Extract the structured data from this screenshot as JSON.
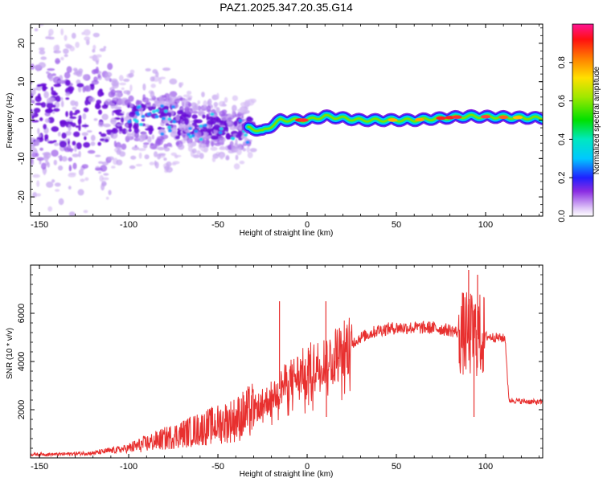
{
  "title": "PAZ1.2025.347.20.35.G14",
  "chart_data": [
    {
      "type": "heatmap",
      "name": "spectrogram",
      "xlabel": "Height of straight line (km)",
      "ylabel": "Frequency (Hz)",
      "xlim": [
        -155,
        132
      ],
      "ylim": [
        -25,
        25
      ],
      "xticks": [
        -150,
        -100,
        -50,
        0,
        50,
        100
      ],
      "yticks": [
        -20,
        -10,
        0,
        10,
        20
      ],
      "colorbar": {
        "label": "Normalized spectral amplitude",
        "range": [
          0,
          1
        ],
        "ticks": [
          0.0,
          0.2,
          0.4,
          0.6,
          0.8
        ]
      },
      "ridge": {
        "x": [
          -155,
          -120,
          -100,
          -80,
          -60,
          -40,
          -32,
          -25,
          -15,
          0,
          10,
          30,
          60,
          90,
          132
        ],
        "frequency": [
          2,
          1,
          0,
          0,
          -1,
          -3,
          -2,
          -3,
          0,
          0,
          1,
          0,
          0,
          1,
          0.5
        ]
      }
    },
    {
      "type": "line",
      "name": "snr",
      "xlabel": "Height of straight line (km)",
      "ylabel": "SNR (10 * v/v)",
      "xlim": [
        -155,
        132
      ],
      "ylim": [
        0,
        8000
      ],
      "xticks": [
        -150,
        -100,
        -50,
        0,
        50,
        100
      ],
      "yticks": [
        2000,
        4000,
        6000
      ],
      "color": "#e8302f",
      "envelope": {
        "x": [
          -155,
          -140,
          -120,
          -100,
          -80,
          -60,
          -40,
          -30,
          -22,
          -15,
          -10,
          0,
          10,
          20,
          30,
          40,
          50,
          60,
          70,
          80,
          85,
          90,
          95,
          100,
          105,
          111,
          113,
          120,
          132
        ],
        "snr": [
          150,
          150,
          200,
          400,
          800,
          1200,
          1600,
          2000,
          2400,
          2900,
          3200,
          3700,
          4000,
          4500,
          5000,
          5300,
          5400,
          5400,
          5400,
          5300,
          5200,
          5100,
          5100,
          5050,
          5000,
          4950,
          2400,
          2350,
          2300
        ]
      },
      "spikes": [
        {
          "x": -15.5,
          "snr": 6500
        },
        {
          "x": 10.5,
          "snr": 6500
        },
        {
          "x": 10.8,
          "snr": 1700
        },
        {
          "x": 90.5,
          "snr": 7800
        },
        {
          "x": 93.5,
          "snr": 1700
        },
        {
          "x": 95.5,
          "snr": 7600
        }
      ]
    }
  ]
}
